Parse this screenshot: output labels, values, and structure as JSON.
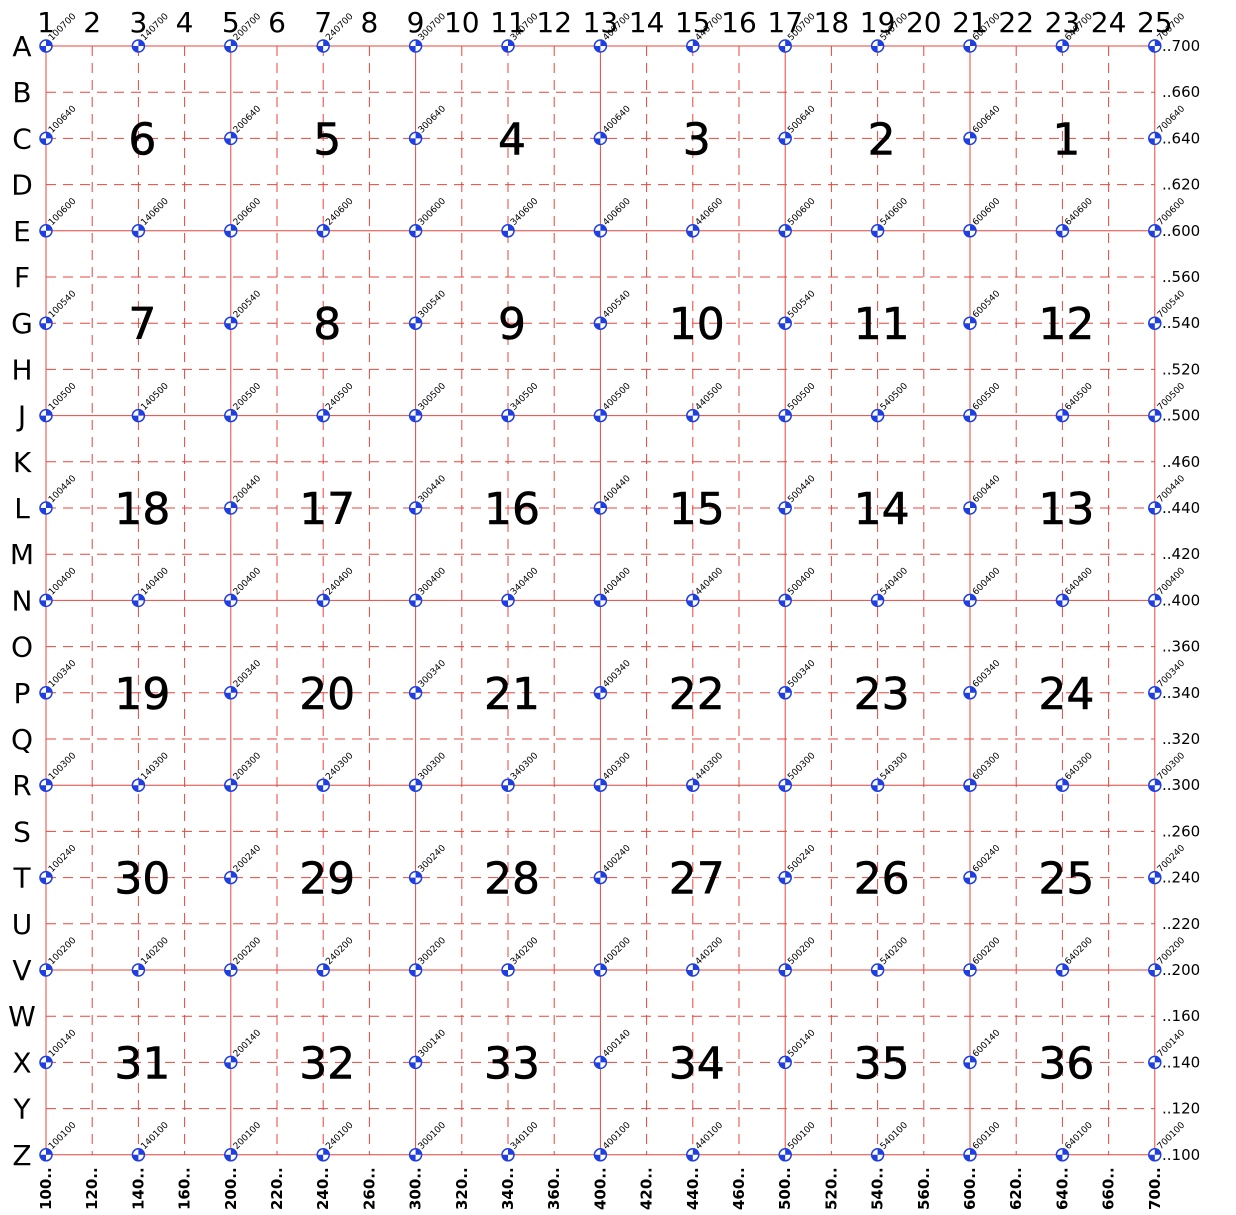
{
  "grid": {
    "column_labels": [
      "1",
      "2",
      "3",
      "4",
      "5",
      "6",
      "7",
      "8",
      "9",
      "10",
      "11",
      "12",
      "13",
      "14",
      "15",
      "16",
      "17",
      "18",
      "19",
      "20",
      "21",
      "22",
      "23",
      "24",
      "25"
    ],
    "row_labels": [
      "A",
      "B",
      "C",
      "D",
      "E",
      "F",
      "G",
      "H",
      "J",
      "K",
      "L",
      "M",
      "N",
      "O",
      "P",
      "Q",
      "R",
      "S",
      "T",
      "U",
      "V",
      "W",
      "X",
      "Y",
      "Z"
    ],
    "right_values": [
      "700",
      "660",
      "640",
      "620",
      "600",
      "560",
      "540",
      "520",
      "500",
      "460",
      "440",
      "420",
      "400",
      "360",
      "340",
      "320",
      "300",
      "260",
      "240",
      "220",
      "200",
      "160",
      "140",
      "120",
      "100"
    ],
    "bottom_values": [
      "100",
      "120",
      "140",
      "160",
      "200",
      "220",
      "240",
      "260",
      "300",
      "320",
      "340",
      "360",
      "400",
      "420",
      "440",
      "460",
      "500",
      "520",
      "540",
      "560",
      "600",
      "620",
      "640",
      "660",
      "700"
    ],
    "major_line_color": "#e8453c",
    "minor_line_color": "#e8453c",
    "marker_color": "#1f3fe0"
  },
  "point_label_rows": [
    {
      "y": "700",
      "cols": [
        "100",
        "140",
        "200",
        "240",
        "300",
        "340",
        "400",
        "440",
        "500",
        "540",
        "600",
        "640",
        "700"
      ]
    },
    {
      "y": "640",
      "cols": [
        "100",
        "200",
        "300",
        "400",
        "500",
        "600",
        "700"
      ]
    },
    {
      "y": "600",
      "cols": [
        "100",
        "140",
        "200",
        "240",
        "300",
        "340",
        "400",
        "440",
        "500",
        "540",
        "600",
        "640",
        "700"
      ]
    },
    {
      "y": "540",
      "cols": [
        "100",
        "200",
        "300",
        "400",
        "500",
        "600",
        "700"
      ]
    },
    {
      "y": "500",
      "cols": [
        "100",
        "140",
        "200",
        "240",
        "300",
        "340",
        "400",
        "440",
        "500",
        "540",
        "600",
        "640",
        "700"
      ]
    },
    {
      "y": "440",
      "cols": [
        "100",
        "200",
        "300",
        "400",
        "500",
        "600",
        "700"
      ]
    },
    {
      "y": "400",
      "cols": [
        "100",
        "140",
        "200",
        "240",
        "300",
        "340",
        "400",
        "440",
        "500",
        "540",
        "600",
        "640",
        "700"
      ]
    },
    {
      "y": "340",
      "cols": [
        "100",
        "200",
        "300",
        "400",
        "500",
        "600",
        "700"
      ]
    },
    {
      "y": "300",
      "cols": [
        "100",
        "140",
        "200",
        "240",
        "300",
        "340",
        "400",
        "440",
        "500",
        "540",
        "600",
        "640",
        "700"
      ]
    },
    {
      "y": "240",
      "cols": [
        "100",
        "200",
        "300",
        "400",
        "500",
        "600",
        "700"
      ]
    },
    {
      "y": "200",
      "cols": [
        "100",
        "140",
        "200",
        "240",
        "300",
        "340",
        "400",
        "440",
        "500",
        "540",
        "600",
        "640",
        "700"
      ]
    },
    {
      "y": "140",
      "cols": [
        "100",
        "200",
        "300",
        "400",
        "500",
        "600",
        "700"
      ]
    },
    {
      "y": "100",
      "cols": [
        "100",
        "140",
        "200",
        "240",
        "300",
        "340",
        "400",
        "440",
        "500",
        "540",
        "600",
        "640",
        "700"
      ]
    }
  ],
  "cell_numbers": [
    [
      "6",
      "5",
      "4",
      "3",
      "2",
      "1"
    ],
    [
      "7",
      "8",
      "9",
      "10",
      "11",
      "12"
    ],
    [
      "18",
      "17",
      "16",
      "15",
      "14",
      "13"
    ],
    [
      "19",
      "20",
      "21",
      "22",
      "23",
      "24"
    ],
    [
      "30",
      "29",
      "28",
      "27",
      "26",
      "25"
    ],
    [
      "31",
      "32",
      "33",
      "34",
      "35",
      "36"
    ]
  ]
}
